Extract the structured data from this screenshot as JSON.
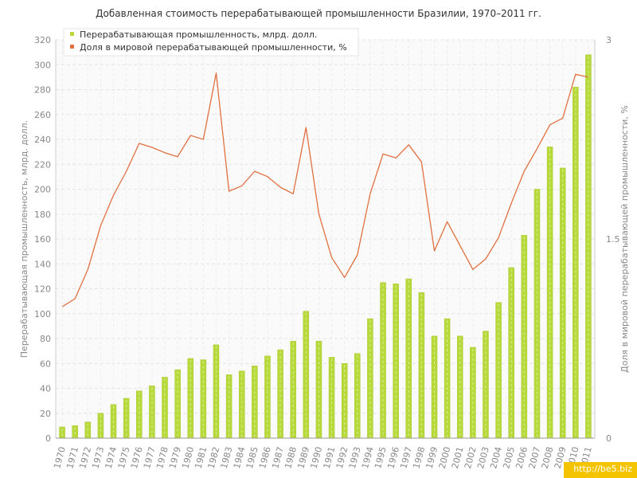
{
  "chart_data": {
    "type": "bar",
    "title": "Добавленная стоимость перерабатывающей промышленности Бразилии, 1970–2011 гг.",
    "categories": [
      "1970",
      "1971",
      "1972",
      "1973",
      "1974",
      "1975",
      "1976",
      "1977",
      "1978",
      "1979",
      "1980",
      "1981",
      "1982",
      "1983",
      "1984",
      "1985",
      "1986",
      "1987",
      "1988",
      "1989",
      "1990",
      "1991",
      "1992",
      "1993",
      "1994",
      "1995",
      "1996",
      "1997",
      "1998",
      "1999",
      "2000",
      "2001",
      "2002",
      "2003",
      "2004",
      "2005",
      "2006",
      "2007",
      "2008",
      "2009",
      "2010",
      "2011"
    ],
    "series": [
      {
        "name": "Перерабатывающая промышленность, млрд. долл.",
        "type": "bar",
        "axis": "left",
        "color": "#b8d93a",
        "values": [
          9,
          10,
          13,
          20,
          27,
          32,
          38,
          42,
          49,
          55,
          64,
          63,
          75,
          51,
          54,
          58,
          66,
          71,
          78,
          102,
          78,
          65,
          60,
          68,
          96,
          125,
          124,
          128,
          117,
          82,
          96,
          82,
          73,
          86,
          109,
          137,
          163,
          200,
          234,
          217,
          282,
          308
        ]
      },
      {
        "name": "Доля в мировой перерабатывающей промышленности, %",
        "type": "line",
        "axis": "right",
        "color": "#e07040",
        "values": [
          0.99,
          1.05,
          1.27,
          1.6,
          1.83,
          2.01,
          2.22,
          2.19,
          2.15,
          2.12,
          2.28,
          2.25,
          2.75,
          1.86,
          1.9,
          2.01,
          1.97,
          1.89,
          1.84,
          2.34,
          1.69,
          1.36,
          1.21,
          1.38,
          1.84,
          2.14,
          2.11,
          2.21,
          2.08,
          1.41,
          1.63,
          1.45,
          1.27,
          1.35,
          1.51,
          1.77,
          2.01,
          2.18,
          2.36,
          2.41,
          2.74,
          2.72
        ]
      }
    ],
    "ylabel": "Перерабатывающая промышленность, млрд. долл.",
    "ylabel_right": "Доля в мировой перерабатывающей промышленности, %",
    "ylim": [
      0,
      320
    ],
    "yticks": [
      "0",
      "20",
      "40",
      "60",
      "80",
      "100",
      "120",
      "140",
      "160",
      "180",
      "200",
      "220",
      "240",
      "260",
      "280",
      "300",
      "320"
    ],
    "ylim_right": [
      0,
      3
    ],
    "yticks_right": [
      "0",
      "1.5",
      "3"
    ],
    "grid": true,
    "legend": "top-left"
  },
  "watermark": "http://be5.biz"
}
